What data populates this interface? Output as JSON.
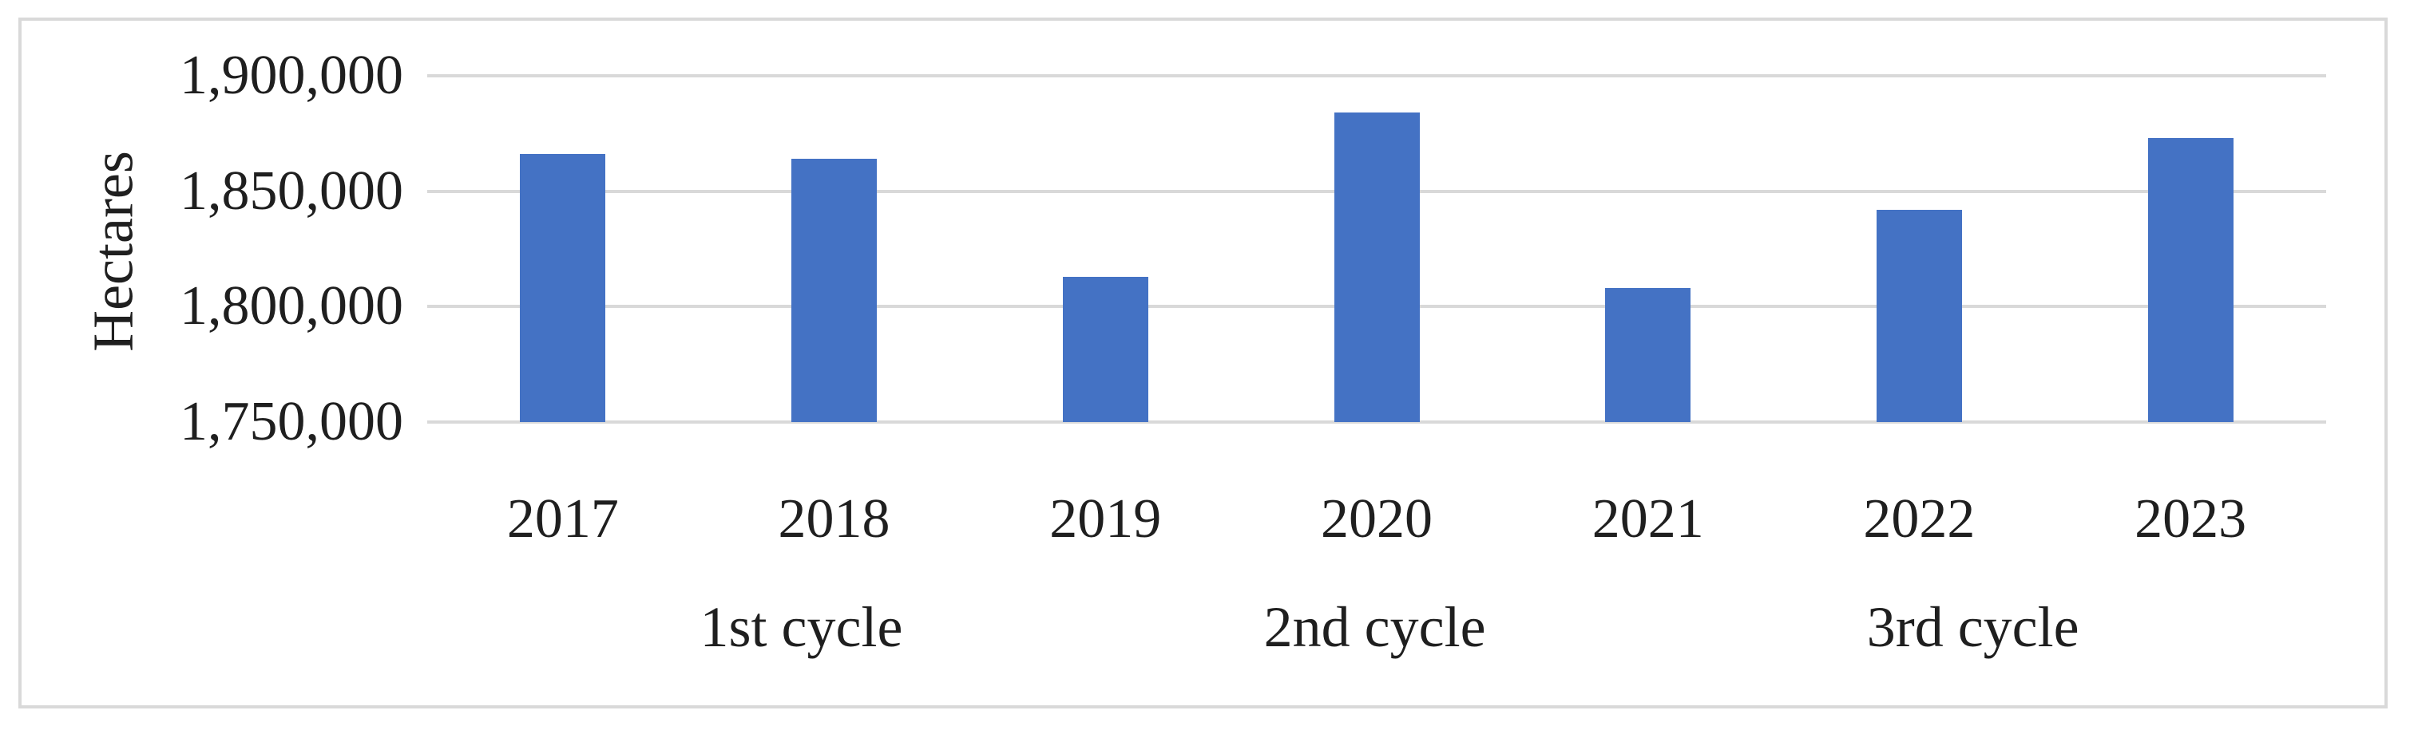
{
  "chart_data": {
    "type": "bar",
    "title": "",
    "xlabel": "",
    "ylabel": "Hectares",
    "categories": [
      "2017",
      "2018",
      "2019",
      "2020",
      "2021",
      "2022",
      "2023"
    ],
    "values": [
      1866000,
      1864000,
      1813000,
      1884000,
      1808000,
      1842000,
      1873000
    ],
    "groups": [
      {
        "label": "1st cycle",
        "categories": [
          "2017",
          "2018",
          "2019"
        ]
      },
      {
        "label": "2nd cycle",
        "categories": [
          "2020",
          "2021"
        ]
      },
      {
        "label": "3rd cycle",
        "categories": [
          "2022",
          "2023"
        ]
      }
    ],
    "yticks": [
      "1,900,000",
      "1,850,000",
      "1,800,000",
      "1,750,000"
    ],
    "ylim": [
      1750000,
      1900000
    ],
    "grid": true,
    "legend": "none",
    "colors": {
      "bar": "#4472c4",
      "gridline": "#d9d9d9",
      "frame_border": "#d9d9d9",
      "text": "#1f1f1f"
    }
  }
}
